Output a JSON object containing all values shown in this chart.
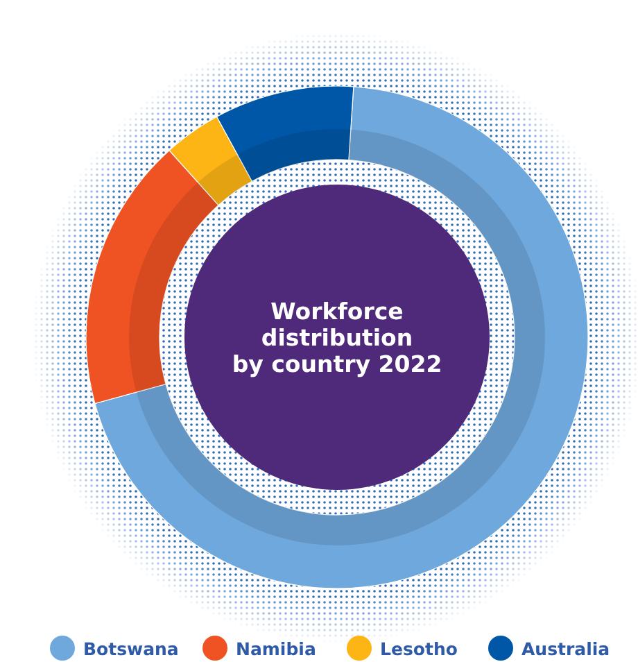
{
  "chart_data": {
    "type": "donut",
    "title": "Workforce distribution by country 2022",
    "categories": [
      "Botswana",
      "Namibia",
      "Lesotho",
      "Australia"
    ],
    "values": [
      69.7,
      17.6,
      3.7,
      9.0
    ],
    "colors": [
      "#6fa8dc",
      "#f05323",
      "#fdb515",
      "#0057a8"
    ],
    "legend": "bottom"
  }
}
